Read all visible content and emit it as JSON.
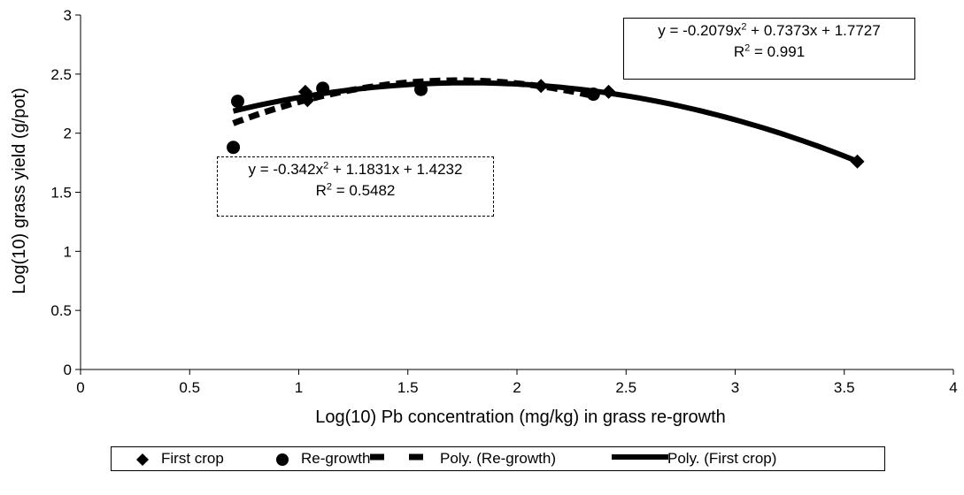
{
  "chart_data": {
    "type": "scatter",
    "xlabel": "Log(10) Pb concentration (mg/kg) in grass re-growth",
    "ylabel": "Log(10) grass yield (g/pot)",
    "xlim": [
      0,
      4
    ],
    "ylim": [
      0,
      3
    ],
    "xticks": [
      0,
      0.5,
      1,
      1.5,
      2,
      2.5,
      3,
      3.5,
      4
    ],
    "yticks": [
      0,
      0.5,
      1,
      1.5,
      2,
      2.5,
      3
    ],
    "xtick_labels": [
      "0",
      "0.5",
      "1",
      "1.5",
      "2",
      "2.5",
      "3",
      "3.5",
      "4"
    ],
    "ytick_labels": [
      "0",
      "0.5",
      "1",
      "1.5",
      "2",
      "2.5",
      "3"
    ],
    "grid": false,
    "legend_position": "bottom",
    "series": [
      {
        "name": "First crop",
        "marker": "diamond",
        "x": [
          1.03,
          1.04,
          2.11,
          2.42,
          3.56
        ],
        "y": [
          2.35,
          2.28,
          2.4,
          2.35,
          1.76
        ]
      },
      {
        "name": "Re-growth",
        "marker": "circle",
        "x": [
          0.7,
          0.72,
          1.11,
          1.56,
          2.35
        ],
        "y": [
          1.88,
          2.27,
          2.38,
          2.37,
          2.33
        ]
      }
    ],
    "trendlines": [
      {
        "name": "Poly. (Re-growth)",
        "style": "dashed",
        "coefficients": [
          -0.342,
          1.1831,
          1.4232
        ],
        "x_range": [
          0.7,
          2.35
        ],
        "equation": "y = -0.342x",
        "equation_tail": " + 1.1831x + 1.4232",
        "r2_label": "R",
        "r2_value": " = 0.5482"
      },
      {
        "name": "Poly. (First crop)",
        "style": "solid",
        "coefficients": [
          -0.2079,
          0.7373,
          1.7727
        ],
        "x_range": [
          0.7,
          3.56
        ],
        "equation": "y = -0.2079x",
        "equation_tail": " + 0.7373x + 1.7727",
        "r2_label": "R",
        "r2_value": " = 0.991"
      }
    ]
  },
  "legend": {
    "items": [
      "First crop",
      "Re-growth",
      "Poly. (Re-growth)",
      "Poly. (First crop)"
    ]
  },
  "colors": {
    "ink": "#000000",
    "background": "#ffffff"
  }
}
